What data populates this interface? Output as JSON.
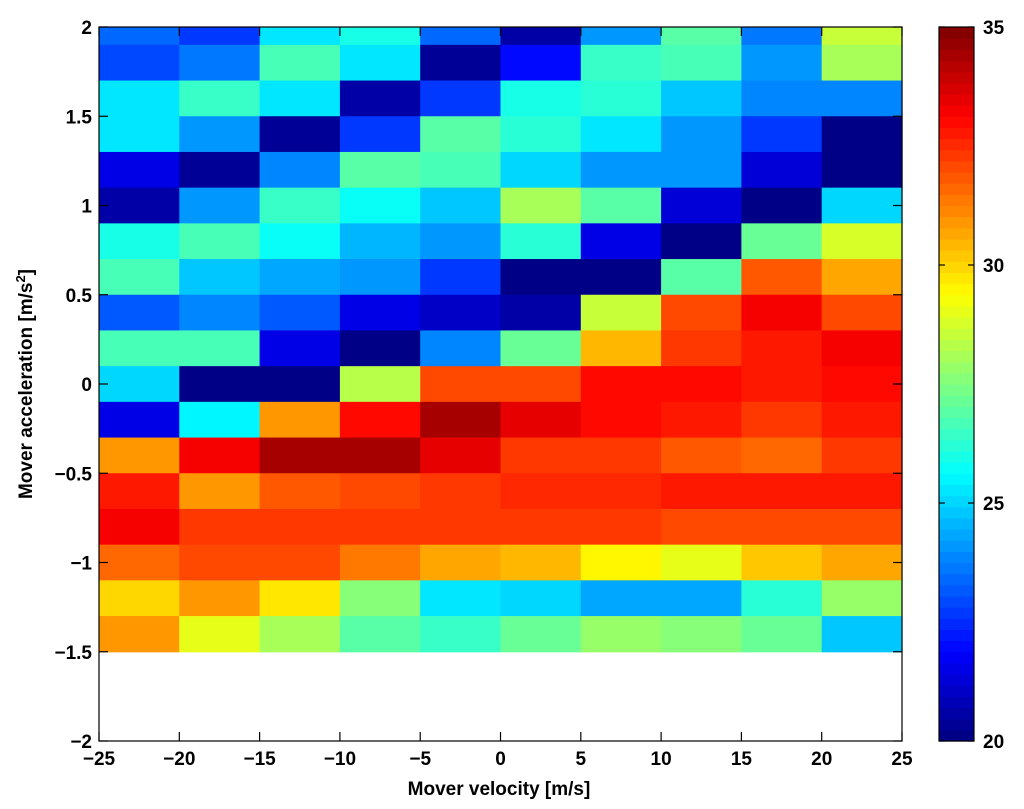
{
  "chart_data": {
    "type": "heatmap",
    "title": "",
    "xlabel": "Mover velocity [m/s]",
    "ylabel_main": "Mover acceleration [m/s",
    "ylabel_sup": "2",
    "ylabel_end": "]",
    "xlim": [
      -25,
      25
    ],
    "ylim": [
      -2,
      2
    ],
    "x_edges": [
      -25,
      -20,
      -15,
      -10,
      -5,
      0,
      5,
      10,
      15,
      20,
      25
    ],
    "y_step": 0.2,
    "x_ticks": [
      -25,
      -20,
      -15,
      -10,
      -5,
      0,
      5,
      10,
      15,
      20,
      25
    ],
    "x_tick_labels": [
      "−25",
      "−20",
      "−15",
      "−10",
      "−5",
      "0",
      "5",
      "10",
      "15",
      "20",
      "25"
    ],
    "y_ticks": [
      -2,
      -1.5,
      -1,
      -0.5,
      0,
      0.5,
      1,
      1.5,
      2
    ],
    "y_tick_labels": [
      "−2",
      "−1.5",
      "−1",
      "−0.5",
      "0",
      "0.5",
      "1",
      "1.5",
      "2"
    ],
    "colorbar": {
      "range": [
        20,
        35
      ],
      "ticks": [
        20,
        25,
        30,
        35
      ],
      "tick_labels": [
        "20",
        "25",
        "30",
        "35"
      ],
      "colormap": "jet",
      "levels": 64
    },
    "rows_top_to_bottom": [
      [
        23.5,
        22.7,
        25.2,
        26.0,
        23.3,
        20.6,
        24.0,
        26.9,
        23.7,
        28.5
      ],
      [
        23.0,
        23.6,
        26.7,
        25.2,
        20.4,
        22.0,
        26.4,
        26.6,
        24.1,
        28.2
      ],
      [
        25.3,
        26.5,
        25.2,
        20.6,
        22.6,
        25.9,
        26.1,
        24.9,
        23.8,
        23.9
      ],
      [
        25.2,
        24.0,
        20.4,
        22.6,
        26.8,
        26.3,
        25.2,
        24.2,
        22.6,
        20.0
      ],
      [
        21.6,
        20.4,
        23.8,
        26.9,
        26.7,
        25.0,
        24.2,
        24.2,
        21.4,
        20.0
      ],
      [
        20.6,
        24.0,
        26.5,
        25.8,
        24.9,
        28.2,
        26.9,
        21.2,
        20.2,
        25.0
      ],
      [
        26.0,
        26.7,
        25.7,
        24.6,
        24.2,
        26.2,
        21.5,
        20.2,
        27.1,
        28.7
      ],
      [
        26.6,
        24.9,
        24.4,
        24.1,
        22.6,
        20.1,
        20.1,
        26.9,
        31.9,
        30.6
      ],
      [
        23.2,
        23.9,
        23.2,
        21.5,
        21.1,
        20.6,
        28.5,
        32.0,
        33.2,
        32.0
      ],
      [
        26.6,
        26.6,
        21.6,
        20.1,
        23.8,
        27.2,
        30.5,
        32.4,
        32.8,
        33.3
      ],
      [
        25.1,
        20.1,
        20.1,
        28.4,
        32.0,
        32.0,
        32.9,
        33.1,
        32.7,
        33.1
      ],
      [
        21.5,
        25.6,
        30.8,
        33.1,
        34.3,
        33.5,
        33.0,
        32.7,
        32.2,
        32.7
      ],
      [
        30.9,
        33.2,
        34.4,
        34.4,
        33.5,
        32.4,
        32.2,
        31.8,
        31.5,
        32.2
      ],
      [
        32.8,
        30.8,
        31.8,
        32.1,
        32.4,
        32.5,
        32.6,
        32.8,
        32.8,
        32.8
      ],
      [
        33.3,
        32.2,
        32.3,
        32.3,
        32.4,
        32.3,
        32.2,
        32.1,
        32.0,
        32.0
      ],
      [
        31.7,
        32.0,
        32.0,
        31.3,
        30.7,
        30.5,
        29.6,
        29.1,
        30.2,
        30.6
      ],
      [
        29.9,
        30.9,
        29.8,
        27.7,
        25.2,
        25.1,
        24.3,
        24.3,
        26.2,
        27.9
      ],
      [
        30.8,
        29.1,
        28.0,
        27.0,
        26.5,
        27.2,
        27.8,
        27.5,
        27.2,
        24.8
      ]
    ]
  }
}
